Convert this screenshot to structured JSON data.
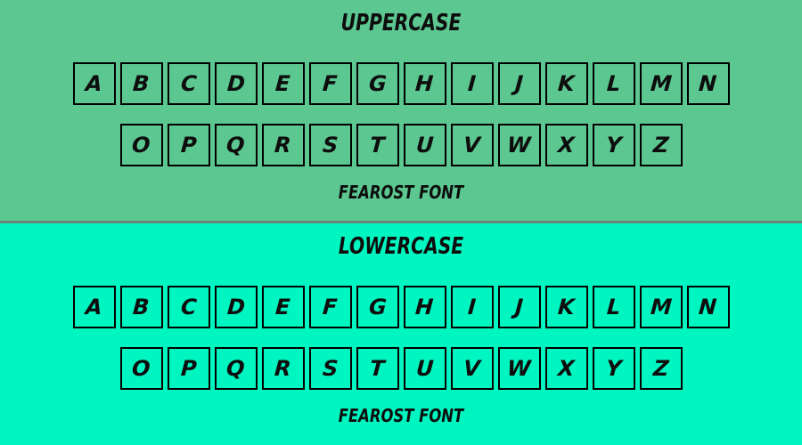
{
  "colors": {
    "uppercase_panel_background": "#5cc790",
    "lowercase_panel_background": "#00f6c0",
    "divider": "#66897b",
    "box_border": "#000000",
    "text": "#0d0d0d"
  },
  "panels": [
    {
      "id": "uppercase",
      "title": "UPPERCASE",
      "background": "#5cc790",
      "row1": [
        "A",
        "B",
        "C",
        "D",
        "E",
        "F",
        "G",
        "H",
        "I",
        "J",
        "K",
        "L",
        "M",
        "N"
      ],
      "row2": [
        "O",
        "P",
        "Q",
        "R",
        "S",
        "T",
        "U",
        "V",
        "W",
        "X",
        "Y",
        "Z"
      ],
      "footer": "FEAROST FONT"
    },
    {
      "id": "lowercase",
      "title": "LOWERCASE",
      "background": "#00f6c0",
      "row1": [
        "A",
        "B",
        "C",
        "D",
        "E",
        "F",
        "G",
        "H",
        "I",
        "J",
        "K",
        "L",
        "M",
        "N"
      ],
      "row2": [
        "O",
        "P",
        "Q",
        "R",
        "S",
        "T",
        "U",
        "V",
        "W",
        "X",
        "Y",
        "Z"
      ],
      "footer": "FEAROST FONT"
    }
  ]
}
